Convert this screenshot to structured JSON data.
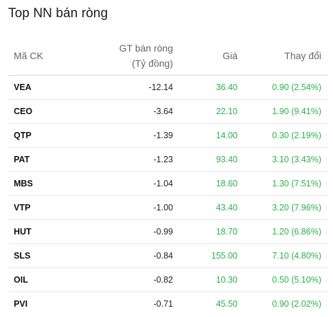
{
  "title": "Top NN bán ròng",
  "headers": {
    "code": "Mã CK",
    "value_line1": "GT bán ròng",
    "value_line2": "(Tỷ đồng)",
    "price": "Giá",
    "change": "Thay đổi"
  },
  "colors": {
    "up": "#2bb14b",
    "text": "#111111",
    "header": "#666666"
  },
  "rows": [
    {
      "code": "VEA",
      "value": "-12.14",
      "price": "36.40",
      "change": "0.90 (2.54%)"
    },
    {
      "code": "CEO",
      "value": "-3.64",
      "price": "22.10",
      "change": "1.90 (9.41%)"
    },
    {
      "code": "QTP",
      "value": "-1.39",
      "price": "14.00",
      "change": "0.30 (2.19%)"
    },
    {
      "code": "PAT",
      "value": "-1.23",
      "price": "93.40",
      "change": "3.10 (3.43%)"
    },
    {
      "code": "MBS",
      "value": "-1.04",
      "price": "18.60",
      "change": "1.30 (7.51%)"
    },
    {
      "code": "VTP",
      "value": "-1.00",
      "price": "43.40",
      "change": "3.20 (7.96%)"
    },
    {
      "code": "HUT",
      "value": "-0.99",
      "price": "18.70",
      "change": "1.20 (6.86%)"
    },
    {
      "code": "SLS",
      "value": "-0.84",
      "price": "155.00",
      "change": "7.10 (4.80%)"
    },
    {
      "code": "OIL",
      "value": "-0.82",
      "price": "10.30",
      "change": "0.50 (5.10%)"
    },
    {
      "code": "PVI",
      "value": "-0.71",
      "price": "45.50",
      "change": "0.90 (2.02%)"
    }
  ]
}
